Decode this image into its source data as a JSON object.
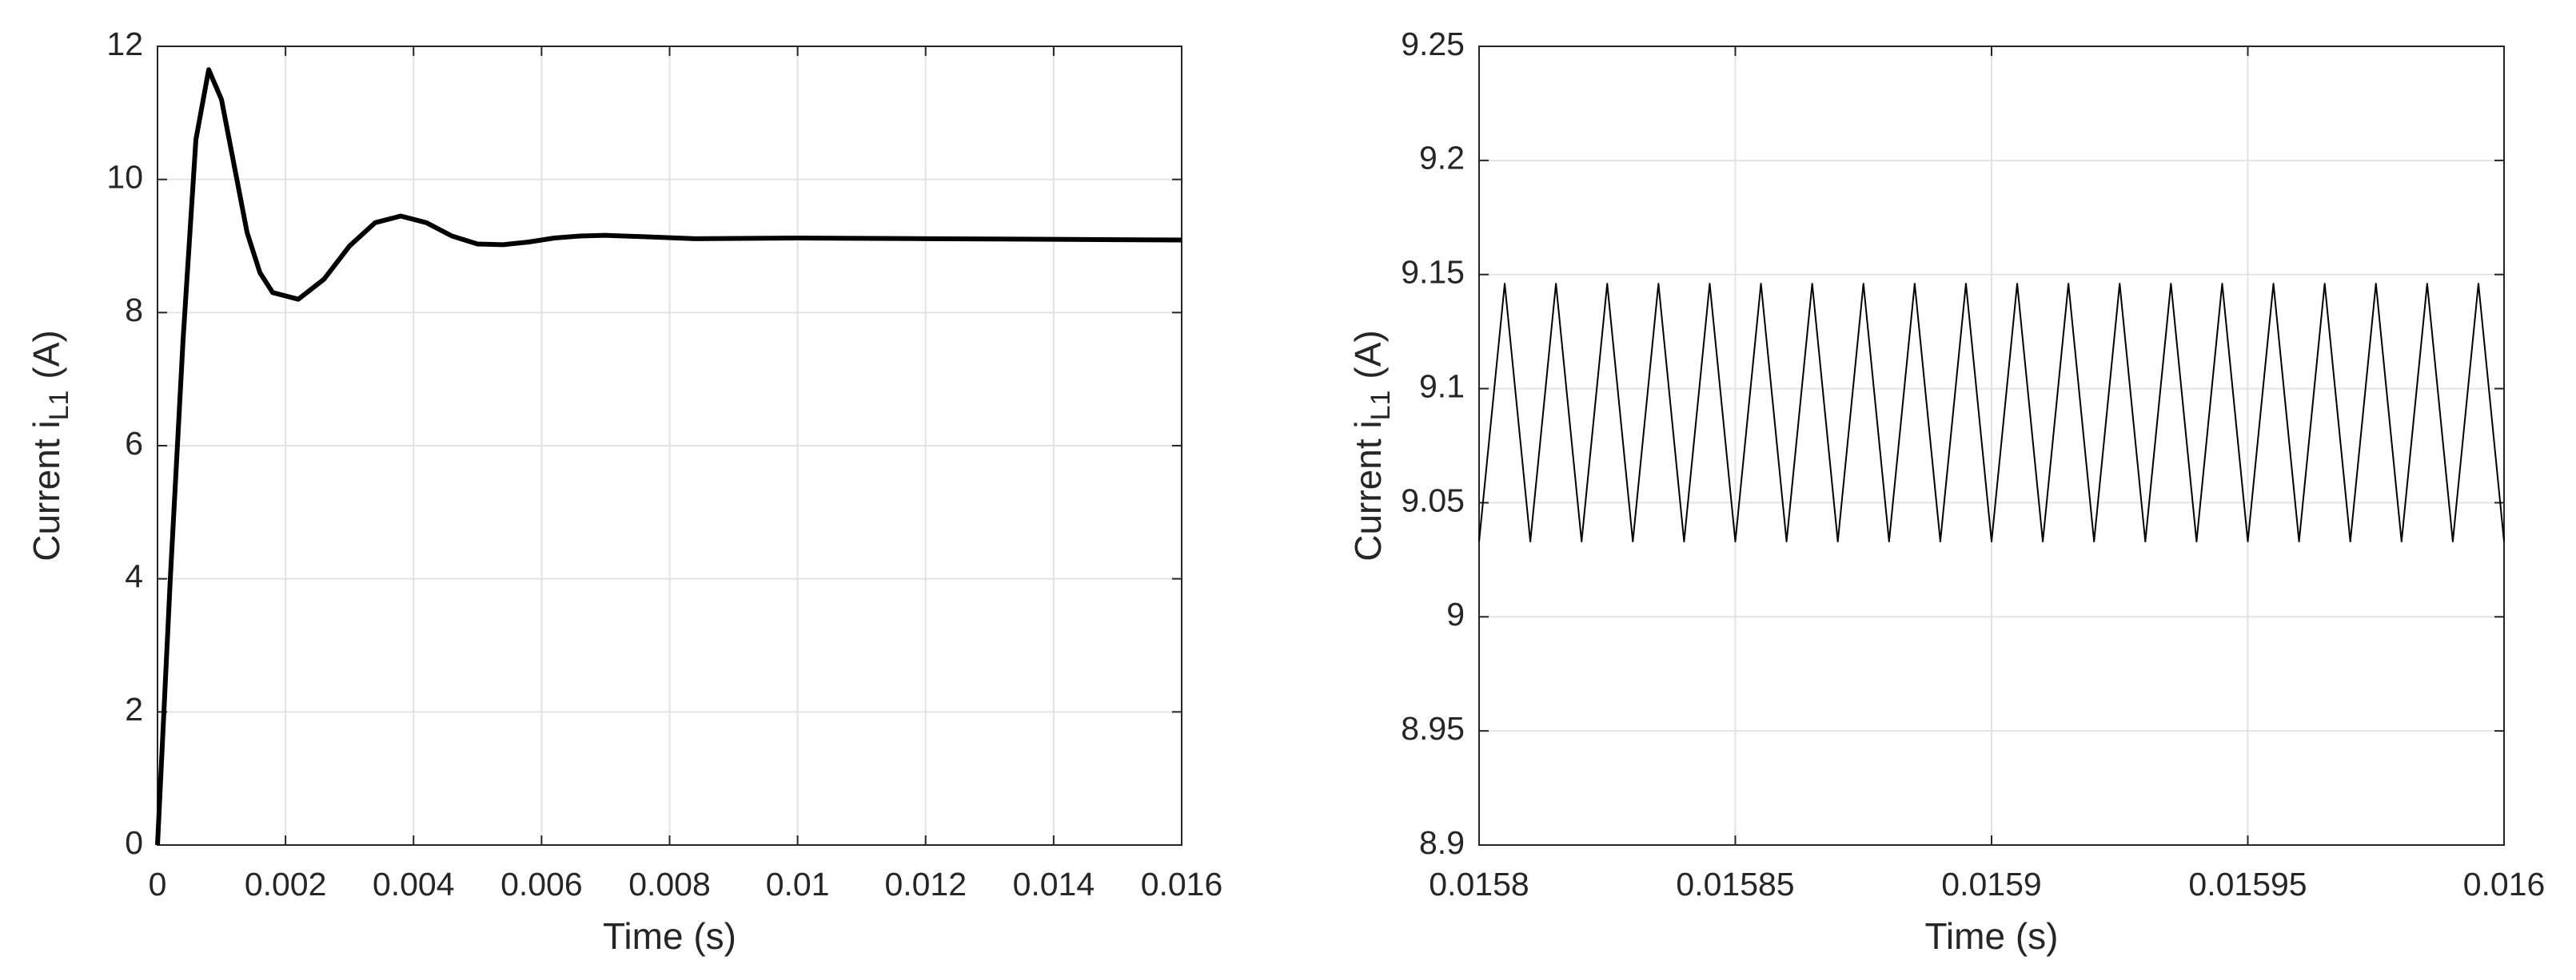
{
  "chart_data": [
    {
      "type": "line",
      "xlabel": "Time (s)",
      "ylabel": [
        "Current i",
        "L1",
        "(A)"
      ],
      "color": "#000000",
      "grid": true,
      "x": [
        0,
        0.0002,
        0.0004,
        0.0006,
        0.0008,
        0.001,
        0.0012,
        0.0014,
        0.0016,
        0.0018,
        0.0022,
        0.0026,
        0.003,
        0.0034,
        0.0038,
        0.0042,
        0.0046,
        0.005,
        0.0054,
        0.0058,
        0.0062,
        0.0066,
        0.007,
        0.0076,
        0.0084,
        0.01,
        0.012,
        0.014,
        0.016
      ],
      "values": [
        0,
        4,
        7.6,
        10.6,
        11.65,
        11.2,
        10.2,
        9.2,
        8.6,
        8.3,
        8.2,
        8.5,
        9.0,
        9.35,
        9.45,
        9.35,
        9.15,
        9.03,
        9.02,
        9.06,
        9.12,
        9.15,
        9.16,
        9.14,
        9.11,
        9.12,
        9.11,
        9.1,
        9.09
      ],
      "xlim": [
        0,
        0.016
      ],
      "xticks": [
        0,
        0.002,
        0.004,
        0.006,
        0.008,
        0.01,
        0.012,
        0.014,
        0.016
      ],
      "ylim": [
        0,
        12
      ],
      "yticks": [
        0,
        2,
        4,
        6,
        8,
        10,
        12
      ]
    },
    {
      "type": "line",
      "xlabel": "Time (s)",
      "ylabel": [
        "Current i",
        "L1",
        "(A)"
      ],
      "color": "#000000",
      "grid": true,
      "x": [
        0.0158,
        0.015805,
        0.01581,
        0.015815,
        0.01582,
        0.015825,
        0.01583,
        0.015835,
        0.01584,
        0.015845,
        0.01585,
        0.015855,
        0.01586,
        0.015865,
        0.01587,
        0.015875,
        0.01588,
        0.015885,
        0.01589,
        0.015895,
        0.0159,
        0.015905,
        0.01591,
        0.015915,
        0.01592,
        0.015925,
        0.01593,
        0.015935,
        0.01594,
        0.015945,
        0.01595,
        0.015955,
        0.01596,
        0.015965,
        0.01597,
        0.015975,
        0.01598,
        0.015985,
        0.01599,
        0.015995,
        0.016
      ],
      "values": [
        9.033,
        9.146,
        9.033,
        9.146,
        9.033,
        9.146,
        9.033,
        9.146,
        9.033,
        9.146,
        9.033,
        9.146,
        9.033,
        9.146,
        9.033,
        9.146,
        9.033,
        9.146,
        9.033,
        9.146,
        9.033,
        9.146,
        9.033,
        9.146,
        9.033,
        9.146,
        9.033,
        9.146,
        9.033,
        9.146,
        9.033,
        9.146,
        9.033,
        9.146,
        9.033,
        9.146,
        9.033,
        9.146,
        9.033,
        9.146,
        9.033
      ],
      "xlim": [
        0.0158,
        0.016
      ],
      "xticks": [
        0.0158,
        0.01585,
        0.0159,
        0.01595,
        0.016
      ],
      "ylim": [
        8.9,
        9.25
      ],
      "yticks": [
        8.9,
        8.95,
        9,
        9.05,
        9.1,
        9.15,
        9.2,
        9.25
      ]
    }
  ]
}
